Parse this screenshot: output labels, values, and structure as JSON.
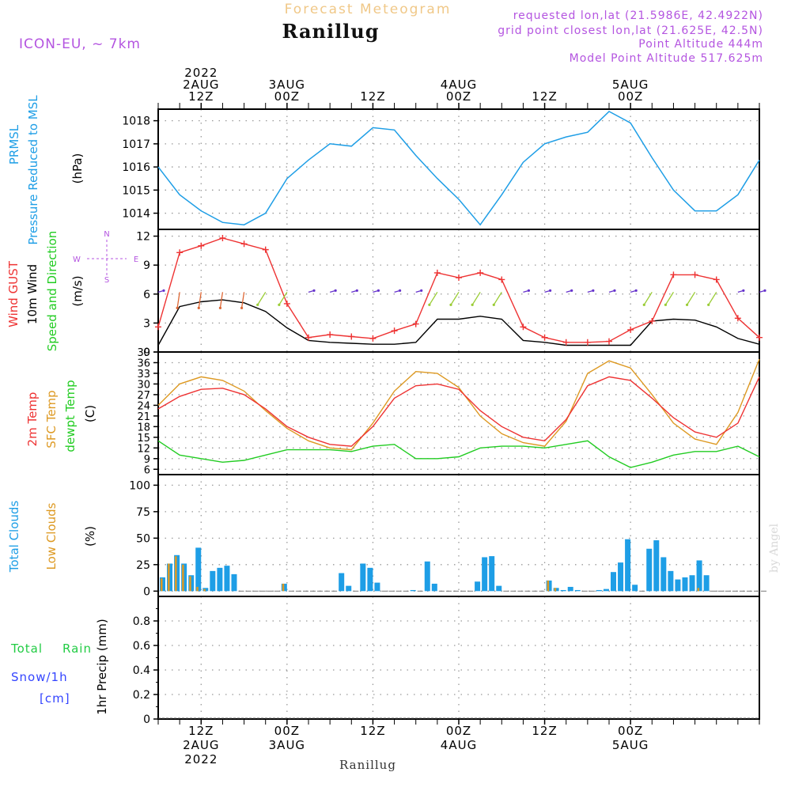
{
  "header": {
    "subtitle": "Forecast Meteogram",
    "station": "Ranillug",
    "model": "ICON-EU, ~ 7km",
    "requested": "requested lon,lat (21.5986E, 42.4922N)",
    "grid_point": "grid point closest lon,lat (21.625E, 42.5N)",
    "point_altitude": "Point Altitude 444m",
    "model_altitude": "Model Point Altitude 517.625m",
    "watermark": "by Angel",
    "footer_station": "Ranillug"
  },
  "time_axis": {
    "top_labels": [
      {
        "lines": [
          "2022",
          "2AUG",
          "12Z"
        ]
      },
      {
        "lines": [
          "3AUG",
          "00Z"
        ]
      },
      {
        "lines": [
          "12Z"
        ]
      },
      {
        "lines": [
          "4AUG",
          "00Z"
        ]
      },
      {
        "lines": [
          "12Z"
        ]
      },
      {
        "lines": [
          "5AUG",
          "00Z"
        ]
      }
    ],
    "bottom_labels": [
      {
        "lines": [
          "12Z",
          "2AUG",
          "2022"
        ]
      },
      {
        "lines": [
          "00Z",
          "3AUG"
        ]
      },
      {
        "lines": [
          "12Z"
        ]
      },
      {
        "lines": [
          "00Z",
          "4AUG"
        ]
      },
      {
        "lines": [
          "12Z"
        ]
      },
      {
        "lines": [
          "00Z",
          "5AUG"
        ]
      }
    ],
    "hours_per_step": 3,
    "start": "2022-08-02 06Z",
    "end": "2022-08-05 18Z"
  },
  "colors": {
    "pressure": "#1e9ee6",
    "gust": "#ee3333",
    "wind": "#000000",
    "temp2m": "#ee3333",
    "sfc": "#dd9922",
    "dewpt": "#22cc22",
    "total_cloud": "#1e9ee6",
    "low_cloud": "#dd9922",
    "rain": "#22cc44",
    "snow": "#3344ff",
    "label_purple": "#b455e0",
    "title_orange": "#f0c888"
  },
  "panels": {
    "pressure": {
      "label1": "PRMSL",
      "label2": "Pressure Reduced to MSL",
      "unit": "(hPa)",
      "ticks": [
        "1014",
        "1015",
        "1016",
        "1017",
        "1018"
      ]
    },
    "wind": {
      "label1": "Wind GUST",
      "label2": "10m Wind",
      "label3": "Speed and Direction",
      "unit": "(m/s)",
      "ticks": [
        "0",
        "3",
        "6",
        "9",
        "12"
      ],
      "compass_n": "N",
      "compass_s": "S",
      "compass_w": "W",
      "compass_e": "E"
    },
    "temp": {
      "label1": "2m Temp",
      "label2": "SFC Temp",
      "label3": "dewpt Temp",
      "unit": "(C)",
      "ticks": [
        "6",
        "9",
        "12",
        "15",
        "18",
        "21",
        "24",
        "27",
        "30",
        "33",
        "36",
        "39"
      ]
    },
    "clouds": {
      "label1": "Total Clouds",
      "label2": "Low Clouds",
      "unit": "(%)",
      "ticks": [
        "0",
        "25",
        "50",
        "75",
        "100"
      ]
    },
    "precip": {
      "label1": "Total",
      "label2": "Rain",
      "label3": "Snow/1h",
      "label4": "[cm]",
      "unit": "1hr Precip (mm)",
      "ticks": [
        "0",
        "0.2",
        "0.4",
        "0.6",
        "0.8"
      ]
    }
  },
  "chart_data": [
    {
      "type": "line",
      "title": "PRMSL Pressure Reduced to MSL",
      "ylabel": "hPa",
      "ylim": [
        1013.3,
        1018.5
      ],
      "x_hours_from_start": [
        0,
        3,
        6,
        9,
        12,
        15,
        18,
        21,
        24,
        27,
        30,
        33,
        36,
        39,
        42,
        45,
        48,
        51,
        54,
        57,
        60,
        63,
        66,
        69,
        72,
        75,
        78,
        81,
        84
      ],
      "series": [
        {
          "name": "PRMSL",
          "values": [
            1016.0,
            1014.8,
            1014.1,
            1013.6,
            1013.5,
            1014.0,
            1015.5,
            1016.3,
            1017.0,
            1016.9,
            1017.7,
            1017.6,
            1016.5,
            1015.5,
            1014.6,
            1013.5,
            1014.8,
            1016.2,
            1017.0,
            1017.3,
            1017.5,
            1018.4,
            1017.9,
            1016.4,
            1015.0,
            1014.1,
            1014.1,
            1014.8,
            1016.3
          ]
        }
      ]
    },
    {
      "type": "line",
      "title": "Wind GUST / 10m Wind",
      "ylabel": "m/s",
      "ylim": [
        0,
        12.7
      ],
      "x_hours_from_start": [
        0,
        3,
        6,
        9,
        12,
        15,
        18,
        21,
        24,
        27,
        30,
        33,
        36,
        39,
        42,
        45,
        48,
        51,
        54,
        57,
        60,
        63,
        66,
        69,
        72,
        75,
        78,
        81,
        84
      ],
      "series": [
        {
          "name": "Wind GUST",
          "values": [
            2.6,
            10.3,
            11.0,
            11.8,
            11.2,
            10.6,
            5.0,
            1.5,
            1.8,
            1.6,
            1.4,
            2.2,
            2.9,
            8.2,
            7.7,
            8.2,
            7.5,
            2.6,
            1.5,
            1.0,
            1.0,
            1.1,
            2.3,
            3.2,
            8.0,
            8.0,
            7.5,
            3.5,
            1.5
          ]
        },
        {
          "name": "10m Wind",
          "values": [
            0.7,
            4.7,
            5.2,
            5.4,
            5.1,
            4.2,
            2.5,
            1.2,
            1.0,
            0.9,
            0.8,
            0.8,
            1.0,
            3.4,
            3.4,
            3.7,
            3.4,
            1.2,
            1.0,
            0.7,
            0.7,
            0.7,
            0.7,
            3.2,
            3.4,
            3.3,
            2.6,
            1.4,
            0.8
          ]
        }
      ]
    },
    {
      "type": "line",
      "title": "2m Temp / SFC Temp / dewpt Temp",
      "ylabel": "C",
      "ylim": [
        4.5,
        39
      ],
      "x_hours_from_start": [
        0,
        3,
        6,
        9,
        12,
        15,
        18,
        21,
        24,
        27,
        30,
        33,
        36,
        39,
        42,
        45,
        48,
        51,
        54,
        57,
        60,
        63,
        66,
        69,
        72,
        75,
        78,
        81,
        84
      ],
      "series": [
        {
          "name": "2m Temp",
          "values": [
            23.0,
            26.5,
            28.5,
            28.8,
            27.0,
            23.0,
            18.0,
            15.0,
            13.0,
            12.5,
            18.0,
            26.0,
            29.5,
            30.0,
            28.5,
            22.5,
            18.0,
            15.0,
            14.0,
            20.0,
            29.5,
            32.0,
            31.0,
            26.0,
            20.5,
            16.5,
            15.0,
            19.0,
            32.0
          ]
        },
        {
          "name": "SFC Temp",
          "values": [
            24.0,
            30.0,
            32.0,
            31.0,
            28.0,
            22.5,
            17.5,
            14.0,
            12.0,
            11.5,
            19.0,
            28.0,
            33.5,
            33.0,
            29.0,
            21.0,
            16.0,
            13.5,
            12.5,
            19.5,
            33.0,
            36.5,
            34.5,
            27.0,
            19.0,
            14.5,
            13.0,
            22.0,
            37.0
          ]
        },
        {
          "name": "dewpt Temp",
          "values": [
            14.0,
            10.0,
            9.0,
            8.0,
            8.5,
            10.0,
            11.5,
            11.5,
            11.5,
            11.0,
            12.5,
            13.0,
            9.0,
            9.0,
            9.5,
            12.0,
            12.5,
            12.5,
            12.0,
            13.0,
            14.0,
            9.5,
            6.5,
            8.0,
            10.0,
            11.0,
            11.0,
            12.5,
            9.5
          ]
        }
      ]
    },
    {
      "type": "bar",
      "title": "Total Clouds / Low Clouds",
      "ylabel": "%",
      "ylim": [
        -5,
        110
      ],
      "x_hours_from_start": [
        0,
        1,
        2,
        3,
        4,
        5,
        6,
        7,
        8,
        9,
        10,
        11,
        12,
        13,
        14,
        15,
        16,
        17,
        18,
        19,
        20,
        21,
        22,
        23,
        24,
        25,
        26,
        27,
        28,
        29,
        30,
        31,
        32,
        33,
        34,
        35,
        36,
        37,
        38,
        39,
        40,
        41,
        42,
        43,
        44,
        45,
        46,
        47,
        48,
        49,
        50,
        51,
        52,
        53,
        54,
        55,
        56,
        57,
        58,
        59,
        60,
        61,
        62,
        63,
        64,
        65,
        66,
        67,
        68,
        69,
        70,
        71,
        72,
        73,
        74,
        75,
        76,
        77,
        78,
        79,
        80,
        81,
        82,
        83,
        84
      ],
      "series": [
        {
          "name": "Total Clouds",
          "values": [
            13,
            26,
            34,
            26,
            15,
            41,
            3,
            19,
            22,
            24,
            16,
            0,
            0,
            0,
            0,
            0,
            0,
            7,
            0,
            0,
            0,
            0,
            0,
            0,
            0,
            17,
            5,
            0,
            26,
            22,
            8,
            0,
            0,
            0,
            0,
            1,
            0,
            28,
            7,
            0,
            0,
            0,
            0,
            0,
            9,
            32,
            33,
            5,
            0,
            0,
            0,
            0,
            0,
            0,
            10,
            3,
            1,
            4,
            1,
            0,
            0,
            1,
            2,
            18,
            27,
            49,
            6,
            0,
            40,
            48,
            32,
            19,
            11,
            13,
            15,
            29,
            15,
            0,
            0,
            0,
            0,
            0,
            0,
            0,
            0
          ]
        },
        {
          "name": "Low Clouds",
          "values": [
            12,
            26,
            33,
            25,
            14,
            4,
            2,
            0,
            0,
            0,
            0,
            0,
            0,
            0,
            0,
            0,
            0,
            7,
            0,
            0,
            0,
            0,
            0,
            0,
            0,
            0,
            0,
            0,
            0,
            0,
            0,
            0,
            0,
            0,
            0,
            0,
            0,
            0,
            0,
            0,
            0,
            0,
            0,
            0,
            0,
            0,
            0,
            0,
            0,
            0,
            0,
            0,
            0,
            0,
            10,
            3,
            0,
            0,
            0,
            0,
            0,
            0,
            0,
            0,
            0,
            0,
            0,
            0,
            0,
            0,
            0,
            0,
            0,
            0,
            0,
            3,
            0,
            0,
            0,
            0,
            0,
            0,
            0,
            0,
            0
          ]
        }
      ]
    },
    {
      "type": "bar",
      "title": "1hr Precip",
      "ylabel": "mm",
      "ylim": [
        0,
        1.0
      ],
      "series": [
        {
          "name": "Total Rain",
          "values": []
        },
        {
          "name": "Snow/1h",
          "values": []
        }
      ]
    }
  ]
}
